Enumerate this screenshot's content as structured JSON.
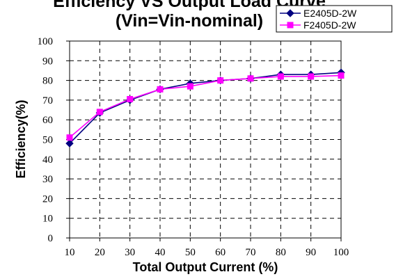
{
  "chart_data": {
    "type": "line",
    "title": "Efficiency VS Output Load Curve",
    "subtitle": "(Vin=Vin-nominal)",
    "xlabel": "Total Output Current (%)",
    "ylabel": "Efficiency(%)",
    "x": [
      10,
      20,
      30,
      40,
      50,
      60,
      70,
      80,
      90,
      100
    ],
    "x_ticks": [
      "10",
      "20",
      "30",
      "40",
      "50",
      "60",
      "70",
      "80",
      "90",
      "100"
    ],
    "y_ticks": [
      "0",
      "10",
      "20",
      "30",
      "40",
      "50",
      "60",
      "70",
      "80",
      "90",
      "100"
    ],
    "xlim": [
      10,
      100
    ],
    "ylim": [
      0,
      100
    ],
    "grid": true,
    "legend_position": "top-right",
    "series": [
      {
        "name": "E2405D-2W",
        "color": "#000080",
        "marker": "diamond",
        "values": [
          48,
          63.5,
          70,
          75.5,
          78.5,
          80,
          81,
          83,
          83,
          84
        ]
      },
      {
        "name": "F2405D-2W",
        "color": "#ff00ff",
        "marker": "square",
        "values": [
          51,
          64,
          70.5,
          75.5,
          77,
          80,
          81,
          82,
          82,
          82.5
        ]
      }
    ]
  }
}
